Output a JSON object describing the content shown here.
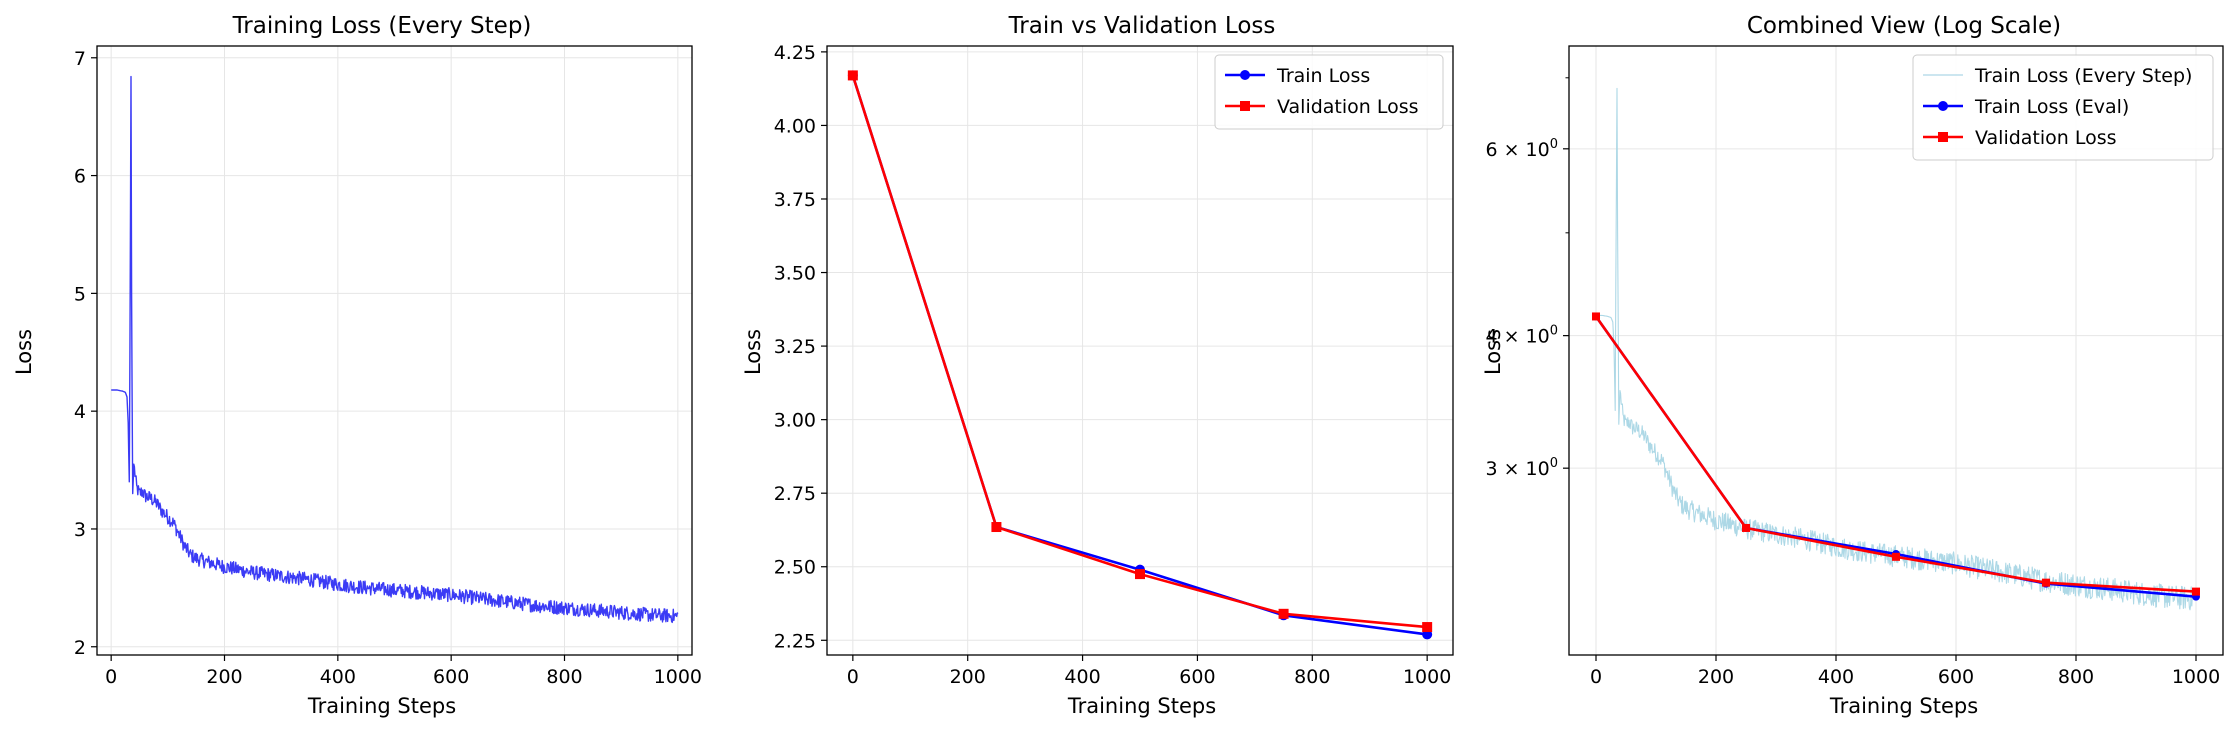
{
  "chart_data": [
    {
      "type": "line",
      "title": "Training Loss (Every Step)",
      "xlabel": "Training Steps",
      "ylabel": "Loss",
      "xlim": [
        -25,
        1025
      ],
      "ylim": [
        1.93,
        7.1
      ],
      "xticks": [
        0,
        200,
        400,
        600,
        800,
        1000
      ],
      "yticks": [
        2,
        3,
        4,
        5,
        6,
        7
      ],
      "grid": true,
      "legend": null,
      "series": [
        {
          "color": "#3b3bf5",
          "kind": "every_step",
          "x": [
            0,
            10,
            20,
            25,
            28,
            30,
            32,
            34,
            35,
            36,
            38,
            40,
            45,
            50,
            55,
            60,
            70,
            80,
            90,
            100,
            110,
            120,
            130,
            140,
            150,
            170,
            200,
            250,
            300,
            350,
            400,
            450,
            500,
            550,
            600,
            650,
            700,
            750,
            800,
            850,
            900,
            950,
            1000
          ],
          "y": [
            4.18,
            4.18,
            4.17,
            4.16,
            4.12,
            3.9,
            3.4,
            5.5,
            6.84,
            5.0,
            3.3,
            3.55,
            3.35,
            3.3,
            3.32,
            3.28,
            3.26,
            3.22,
            3.15,
            3.1,
            3.05,
            2.95,
            2.85,
            2.78,
            2.75,
            2.72,
            2.68,
            2.63,
            2.6,
            2.57,
            2.53,
            2.5,
            2.48,
            2.46,
            2.44,
            2.41,
            2.38,
            2.35,
            2.33,
            2.31,
            2.29,
            2.27,
            2.26
          ],
          "noise_amplitude": 0.06
        }
      ]
    },
    {
      "type": "line",
      "title": "Train vs Validation Loss",
      "xlabel": "Training Steps",
      "ylabel": "Loss",
      "xlim": [
        -45,
        1045
      ],
      "ylim": [
        2.2,
        4.27
      ],
      "xticks": [
        0,
        200,
        400,
        600,
        800,
        1000
      ],
      "yticks": [
        2.25,
        2.5,
        2.75,
        3.0,
        3.25,
        3.5,
        3.75,
        4.0,
        4.25
      ],
      "ytick_labels": [
        "2.25",
        "2.50",
        "2.75",
        "3.00",
        "3.25",
        "3.50",
        "3.75",
        "4.00",
        "4.25"
      ],
      "grid": true,
      "legend": "top-right",
      "series": [
        {
          "name": "Train Loss",
          "color": "#0000ff",
          "marker": "circle",
          "x": [
            0,
            250,
            500,
            750,
            1000
          ],
          "y": [
            4.17,
            2.635,
            2.49,
            2.335,
            2.27
          ]
        },
        {
          "name": "Validation Loss",
          "color": "#ff0000",
          "marker": "square",
          "x": [
            0,
            250,
            500,
            750,
            1000
          ],
          "y": [
            4.17,
            2.635,
            2.475,
            2.34,
            2.295
          ]
        }
      ]
    },
    {
      "type": "line",
      "title": "Combined View (Log Scale)",
      "xlabel": "Training Steps",
      "ylabel": "Loss",
      "yscale": "log",
      "xlim": [
        -45,
        1045
      ],
      "ylim": [
        2.0,
        7.5
      ],
      "xticks": [
        0,
        200,
        400,
        600,
        800,
        1000
      ],
      "yticks_major": [
        {
          "value": 3,
          "base": "3",
          "exp": "0"
        },
        {
          "value": 4,
          "base": "4",
          "exp": "0"
        },
        {
          "value": 6,
          "base": "6",
          "exp": "0"
        }
      ],
      "yticks_minor": [
        5,
        7
      ],
      "grid": true,
      "legend": "top-right",
      "series": [
        {
          "name": "Train Loss (Every Step)",
          "color": "#add8e6",
          "kind": "every_step",
          "source": 0
        },
        {
          "name": "Train Loss (Eval)",
          "color": "#0000ff",
          "marker": "circle",
          "x": [
            0,
            250,
            500,
            750,
            1000
          ],
          "y": [
            4.17,
            2.635,
            2.49,
            2.335,
            2.27
          ]
        },
        {
          "name": "Validation Loss",
          "color": "#ff0000",
          "marker": "square",
          "x": [
            0,
            250,
            500,
            750,
            1000
          ],
          "y": [
            4.17,
            2.635,
            2.475,
            2.34,
            2.295
          ]
        }
      ]
    }
  ]
}
